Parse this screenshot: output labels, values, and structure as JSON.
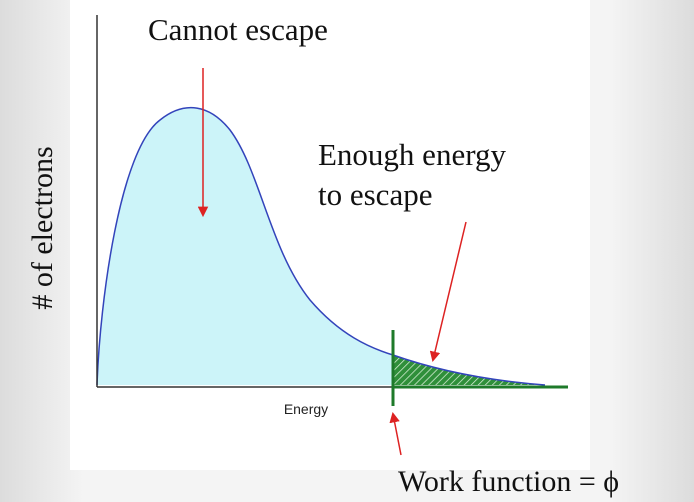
{
  "axes": {
    "y_label": "# of electrons",
    "x_label": "Energy"
  },
  "annotations": {
    "cannot_escape": "Cannot escape",
    "enough_energy": [
      "Enough energy",
      "to escape"
    ],
    "work_function": "Work function = ϕ"
  }
}
